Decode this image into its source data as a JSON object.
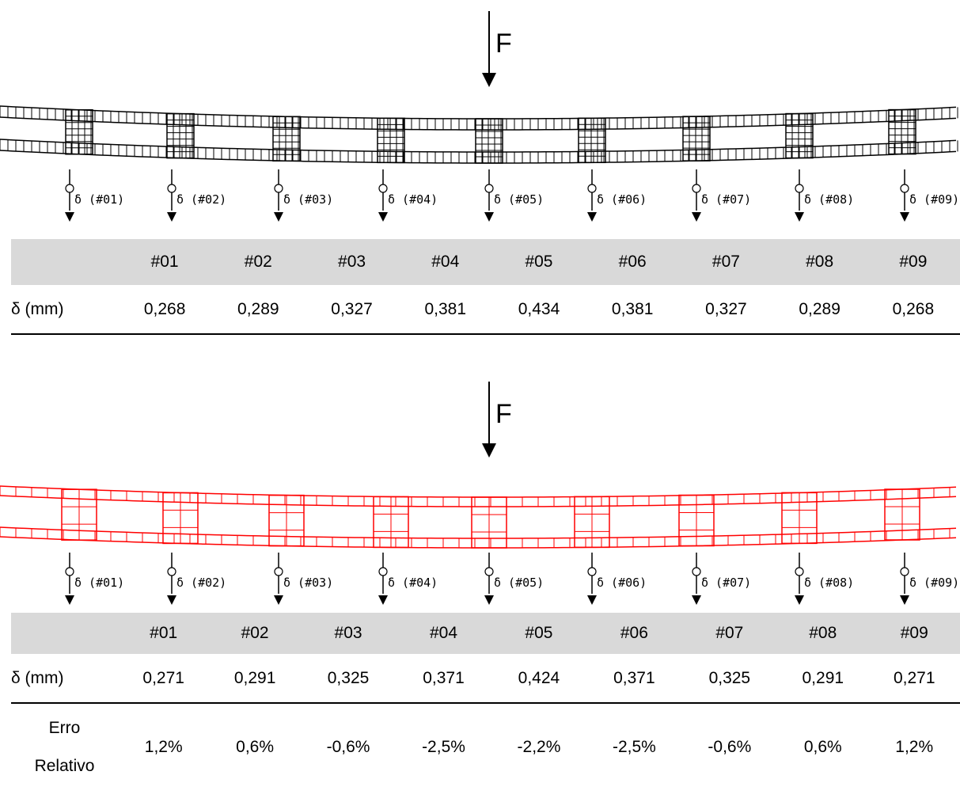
{
  "force_label": "F",
  "sensor_labels": [
    "δ (#01)",
    "δ (#02)",
    "δ (#03)",
    "δ (#04)",
    "δ (#05)",
    "δ (#06)",
    "δ (#07)",
    "δ (#08)",
    "δ (#09)"
  ],
  "top": {
    "columns": [
      "#01",
      "#02",
      "#03",
      "#04",
      "#05",
      "#06",
      "#07",
      "#08",
      "#09"
    ],
    "row_label": "δ (mm)",
    "values": [
      "0,268",
      "0,289",
      "0,327",
      "0,381",
      "0,434",
      "0,381",
      "0,327",
      "0,289",
      "0,268"
    ]
  },
  "bottom": {
    "columns": [
      "#01",
      "#02",
      "#03",
      "#04",
      "#05",
      "#06",
      "#07",
      "#08",
      "#09"
    ],
    "row_label": "δ (mm)",
    "values": [
      "0,271",
      "0,291",
      "0,325",
      "0,371",
      "0,424",
      "0,371",
      "0,325",
      "0,291",
      "0,271"
    ],
    "error_label_1": "Erro",
    "error_label_2": "Relativo",
    "errors": [
      "1,2%",
      "0,6%",
      "-0,6%",
      "-2,5%",
      "-2,2%",
      "-2,5%",
      "-0,6%",
      "0,6%",
      "1,2%"
    ]
  },
  "colors": {
    "mesh_top": "#000000",
    "mesh_bottom": "#ff0000",
    "header_bg": "#d9d9d9"
  }
}
